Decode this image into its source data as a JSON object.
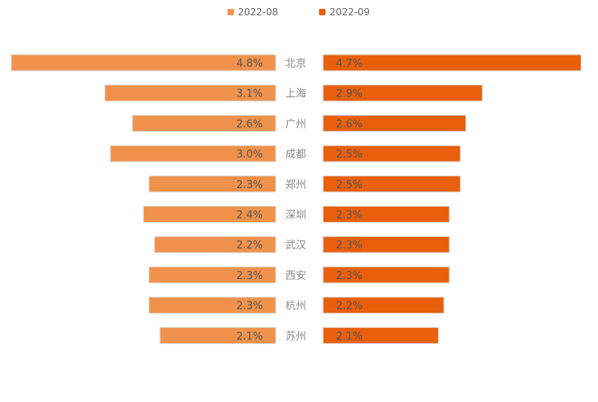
{
  "chart_data": {
    "type": "bar",
    "orientation": "butterfly-horizontal",
    "categories": [
      "北京",
      "上海",
      "广州",
      "成都",
      "郑州",
      "深圳",
      "武汉",
      "西安",
      "杭州",
      "苏州"
    ],
    "series": [
      {
        "name": "2022-08",
        "color": "#f0924b",
        "values": [
          4.8,
          3.1,
          2.6,
          3.0,
          2.3,
          2.4,
          2.2,
          2.3,
          2.3,
          2.1
        ],
        "labels": [
          "4.8%",
          "3.1%",
          "2.6%",
          "3.0%",
          "2.3%",
          "2.4%",
          "2.2%",
          "2.3%",
          "2.3%",
          "2.1%"
        ]
      },
      {
        "name": "2022-09",
        "color": "#e95f0c",
        "values": [
          4.7,
          2.9,
          2.6,
          2.5,
          2.5,
          2.3,
          2.3,
          2.3,
          2.2,
          2.1
        ],
        "labels": [
          "4.7%",
          "2.9%",
          "2.6%",
          "2.5%",
          "2.5%",
          "2.3%",
          "2.3%",
          "2.3%",
          "2.2%",
          "2.1%"
        ]
      }
    ],
    "legend": {
      "position": "top-center",
      "entries": [
        "2022-08",
        "2022-09"
      ]
    },
    "grid": false,
    "axis_labels_visible": false,
    "colors": {
      "category_text": "#888888",
      "value_text": "#555555",
      "legend_text": "#666666",
      "bar_border": "#d9d9d9"
    }
  }
}
